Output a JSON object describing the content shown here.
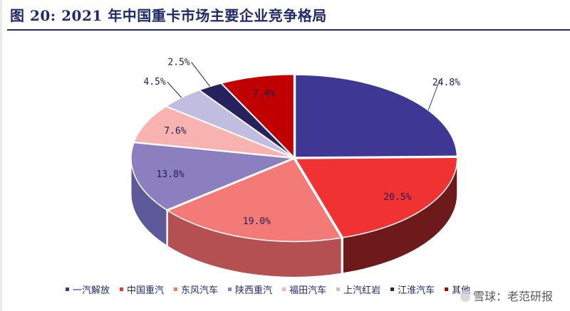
{
  "figure": {
    "title": "图 20:  2021 年中国重卡市场主要企业竞争格局"
  },
  "watermark": {
    "text": "雪球：老范研报",
    "icon": "snowball-logo-icon"
  },
  "chart_data": {
    "type": "pie",
    "title": "图 20:  2021 年中国重卡市场主要企业竞争格局",
    "style": "3d-exploded-pie",
    "legend_position": "bottom",
    "slices": [
      {
        "name": "一汽解放",
        "value": 24.8,
        "label": "24.8%",
        "color": "#3f3794",
        "side_color": "#2a2466"
      },
      {
        "name": "中国重汽",
        "value": 20.5,
        "label": "20.5%",
        "color": "#f03232",
        "side_color": "#6e1a1a"
      },
      {
        "name": "东风汽车",
        "value": 19.0,
        "label": "19.0%",
        "color": "#f47a78",
        "side_color": "#b45052"
      },
      {
        "name": "陕西重汽",
        "value": 13.8,
        "label": "13.8%",
        "color": "#8b7fc0",
        "side_color": "#5e5a9a"
      },
      {
        "name": "福田汽车",
        "value": 7.6,
        "label": "7.6%",
        "color": "#f8b2b0",
        "side_color": "#d8a0a0"
      },
      {
        "name": "上汽红岩",
        "value": 4.5,
        "label": "4.5%",
        "color": "#c1bde1",
        "side_color": "#9f9ac6"
      },
      {
        "name": "江淮汽车",
        "value": 2.5,
        "label": "2.5%",
        "color": "#26225e",
        "side_color": "#15133c"
      },
      {
        "name": "其他",
        "value": 7.4,
        "label": "7.4%",
        "color": "#c00000",
        "side_color": "#7a0000"
      }
    ]
  }
}
